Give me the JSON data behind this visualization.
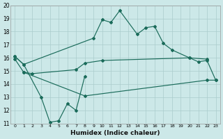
{
  "xlabel": "Humidex (Indice chaleur)",
  "line_color": "#1a6b5a",
  "bg_color": "#cce8e8",
  "grid_color": "#aacccc",
  "ylim": [
    11,
    20
  ],
  "xlim": [
    -0.5,
    23.5
  ],
  "line1_x": [
    0,
    1,
    9,
    10,
    11,
    12,
    14,
    15,
    16,
    17,
    18,
    20,
    21,
    22,
    23
  ],
  "line1_y": [
    16.1,
    15.5,
    17.5,
    18.9,
    18.7,
    19.6,
    17.8,
    18.3,
    18.4,
    17.1,
    16.6,
    16.0,
    15.7,
    15.8,
    14.3
  ],
  "line2_x": [
    0,
    1,
    3,
    4,
    5,
    6,
    7,
    8
  ],
  "line2_y": [
    16.1,
    15.5,
    13.0,
    11.1,
    11.2,
    12.5,
    12.0,
    14.6
  ],
  "line3_x": [
    0,
    1,
    2,
    7,
    8,
    10,
    20,
    22
  ],
  "line3_y": [
    15.9,
    14.9,
    14.8,
    15.1,
    15.6,
    15.8,
    16.0,
    15.9
  ],
  "line4_x": [
    1,
    8,
    22,
    23
  ],
  "line4_y": [
    14.9,
    13.1,
    14.3,
    14.3
  ],
  "yticks": [
    11,
    12,
    13,
    14,
    15,
    16,
    17,
    18,
    19,
    20
  ],
  "xticks": [
    0,
    1,
    2,
    3,
    4,
    5,
    6,
    7,
    8,
    9,
    10,
    11,
    12,
    13,
    14,
    15,
    16,
    17,
    18,
    19,
    20,
    21,
    22,
    23
  ]
}
